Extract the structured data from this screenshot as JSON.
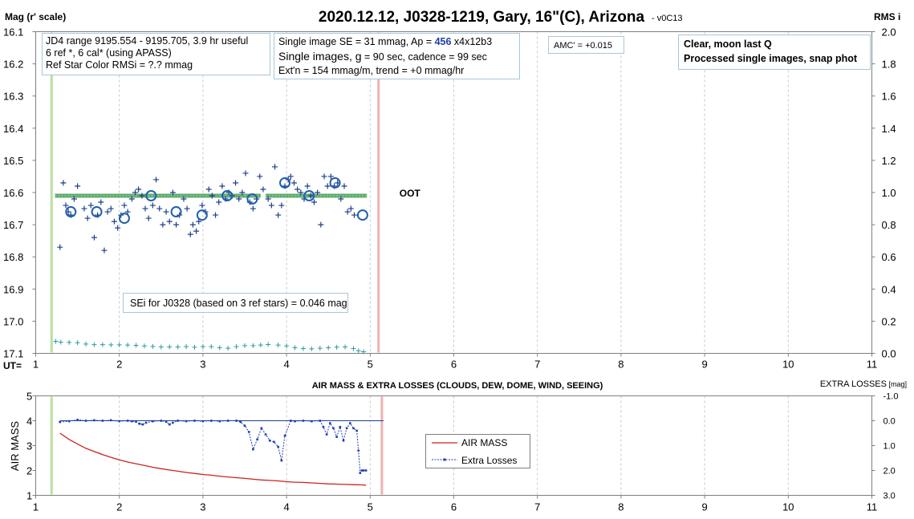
{
  "chart_data": [
    {
      "type": "scatter",
      "title": "2020.12.12, J0328-1219, Gary, 16\"(C), Arizona",
      "subtitle": "- v0C13",
      "ylabel_left": "Mag (r' scale)",
      "ylabel_right": "RMS i",
      "xlabel": "UT=",
      "xlim": [
        1,
        11
      ],
      "ylim_left": [
        16.1,
        17.1
      ],
      "ylim_right": [
        0.0,
        2.0
      ],
      "y_left_inverted": true,
      "x_ticks": [
        "1",
        "2",
        "3",
        "4",
        "5",
        "6",
        "7",
        "8",
        "9",
        "10",
        "11"
      ],
      "y_left_ticks": [
        "16.1",
        "16.2",
        "16.3",
        "16.4",
        "16.5",
        "16.6",
        "16.7",
        "16.8",
        "16.9",
        "17.0",
        "17.1"
      ],
      "y_right_ticks": [
        "2.0",
        "1.8",
        "1.6",
        "1.4",
        "1.2",
        "1.0",
        "0.8",
        "0.6",
        "0.4",
        "0.2",
        "0.0"
      ],
      "grid_x": true,
      "vertical_lines": [
        {
          "x": 1.19,
          "color": "#b8e0a0"
        },
        {
          "x": 5.1,
          "color": "#f2b0b0"
        }
      ],
      "annotation_oot": "OOT",
      "annotation_oot_x": 5.35,
      "annotation_oot_y": 16.6,
      "info_boxes": {
        "left": [
          "JD4 range 9195.554 - 9195.705, 3.9 hr useful",
          " 6 ref *, 6 cal* (using APASS)",
          "Ref Star Color RMSi = ?.? mmag"
        ],
        "mid_line1_a": "Single image SE = 31 mmag, Ap = ",
        "mid_line1_ap": "456",
        "mid_line1_b": " x4x12b3",
        "mid_line2_a": "Single images, ",
        "mid_line2_g": "g",
        "mid_line2_b": " = 90 sec, cadence = 99 sec",
        "mid_line3": "Ext'n = 154 mmag/m, trend = +0 mmag/hr",
        "amc": "AMC' = +0.015",
        "right": [
          "Clear, moon last Q",
          "Processed single images, snap phot"
        ],
        "sei": "SEi for J0328 (based on 3 ref stars) = 0.046 mag"
      },
      "series": [
        {
          "kind": "single-images",
          "marker": "plus",
          "color": "#1f3f8a",
          "points": [
            [
              1.29,
              16.77
            ],
            [
              1.33,
              16.57
            ],
            [
              1.36,
              16.64
            ],
            [
              1.39,
              16.66
            ],
            [
              1.42,
              16.67
            ],
            [
              1.46,
              16.62
            ],
            [
              1.5,
              16.58
            ],
            [
              1.58,
              16.65
            ],
            [
              1.62,
              16.68
            ],
            [
              1.66,
              16.64
            ],
            [
              1.7,
              16.74
            ],
            [
              1.74,
              16.67
            ],
            [
              1.78,
              16.63
            ],
            [
              1.82,
              16.78
            ],
            [
              1.86,
              16.66
            ],
            [
              1.9,
              16.65
            ],
            [
              1.94,
              16.69
            ],
            [
              1.98,
              16.71
            ],
            [
              2.02,
              16.67
            ],
            [
              2.06,
              16.64
            ],
            [
              2.1,
              16.66
            ],
            [
              2.15,
              16.62
            ],
            [
              2.19,
              16.6
            ],
            [
              2.23,
              16.59
            ],
            [
              2.27,
              16.61
            ],
            [
              2.31,
              16.65
            ],
            [
              2.35,
              16.68
            ],
            [
              2.4,
              16.64
            ],
            [
              2.44,
              16.56
            ],
            [
              2.48,
              16.65
            ],
            [
              2.52,
              16.7
            ],
            [
              2.56,
              16.66
            ],
            [
              2.6,
              16.69
            ],
            [
              2.64,
              16.6
            ],
            [
              2.68,
              16.7
            ],
            [
              2.72,
              16.67
            ],
            [
              2.77,
              16.62
            ],
            [
              2.81,
              16.65
            ],
            [
              2.85,
              16.73
            ],
            [
              2.88,
              16.7
            ],
            [
              2.92,
              16.72
            ],
            [
              2.95,
              16.69
            ],
            [
              2.99,
              16.64
            ],
            [
              3.03,
              16.66
            ],
            [
              3.07,
              16.59
            ],
            [
              3.11,
              16.61
            ],
            [
              3.15,
              16.67
            ],
            [
              3.19,
              16.63
            ],
            [
              3.23,
              16.58
            ],
            [
              3.27,
              16.62
            ],
            [
              3.31,
              16.6
            ],
            [
              3.35,
              16.61
            ],
            [
              3.39,
              16.57
            ],
            [
              3.43,
              16.62
            ],
            [
              3.47,
              16.6
            ],
            [
              3.51,
              16.54
            ],
            [
              3.56,
              16.63
            ],
            [
              3.6,
              16.65
            ],
            [
              3.64,
              16.62
            ],
            [
              3.68,
              16.55
            ],
            [
              3.72,
              16.59
            ],
            [
              3.78,
              16.62
            ],
            [
              3.82,
              16.64
            ],
            [
              3.86,
              16.52
            ],
            [
              3.9,
              16.67
            ],
            [
              3.94,
              16.64
            ],
            [
              3.98,
              16.58
            ],
            [
              4.02,
              16.56
            ],
            [
              4.05,
              16.55
            ],
            [
              4.09,
              16.57
            ],
            [
              4.13,
              16.59
            ],
            [
              4.17,
              16.6
            ],
            [
              4.21,
              16.62
            ],
            [
              4.25,
              16.58
            ],
            [
              4.29,
              16.61
            ],
            [
              4.33,
              16.63
            ],
            [
              4.37,
              16.6
            ],
            [
              4.41,
              16.7
            ],
            [
              4.45,
              16.55
            ],
            [
              4.49,
              16.58
            ],
            [
              4.53,
              16.55
            ],
            [
              4.57,
              16.58
            ],
            [
              4.61,
              16.57
            ],
            [
              4.65,
              16.62
            ],
            [
              4.69,
              16.58
            ],
            [
              4.73,
              16.66
            ],
            [
              4.77,
              16.65
            ],
            [
              4.81,
              16.67
            ]
          ]
        },
        {
          "kind": "binned-averages",
          "marker": "circle",
          "color": "#1f5fb0",
          "points": [
            [
              1.42,
              16.66
            ],
            [
              1.73,
              16.66
            ],
            [
              2.06,
              16.68
            ],
            [
              2.38,
              16.61
            ],
            [
              2.68,
              16.66
            ],
            [
              2.99,
              16.67
            ],
            [
              3.29,
              16.61
            ],
            [
              3.59,
              16.62
            ],
            [
              3.98,
              16.57
            ],
            [
              4.27,
              16.61
            ],
            [
              4.58,
              16.57
            ],
            [
              4.91,
              16.67
            ]
          ]
        },
        {
          "kind": "model-fit",
          "marker": "band",
          "color": "#2e8b40",
          "x_ranges": [
            [
              1.23,
              3.69
            ],
            [
              3.75,
              4.96
            ]
          ],
          "y": 16.61
        },
        {
          "kind": "rms",
          "marker": "plus-trace",
          "color": "#2e9aa0",
          "axis": "right",
          "points": [
            [
              1.24,
              0.075
            ],
            [
              1.3,
              0.07
            ],
            [
              1.4,
              0.068
            ],
            [
              1.5,
              0.066
            ],
            [
              1.6,
              0.058
            ],
            [
              1.7,
              0.054
            ],
            [
              1.8,
              0.054
            ],
            [
              1.9,
              0.053
            ],
            [
              2.0,
              0.053
            ],
            [
              2.1,
              0.052
            ],
            [
              2.2,
              0.05
            ],
            [
              2.3,
              0.046
            ],
            [
              2.4,
              0.043
            ],
            [
              2.5,
              0.04
            ],
            [
              2.6,
              0.04
            ],
            [
              2.7,
              0.04
            ],
            [
              2.8,
              0.042
            ],
            [
              2.9,
              0.038
            ],
            [
              3.0,
              0.042
            ],
            [
              3.1,
              0.042
            ],
            [
              3.2,
              0.035
            ],
            [
              3.3,
              0.032
            ],
            [
              3.4,
              0.042
            ],
            [
              3.5,
              0.048
            ],
            [
              3.6,
              0.048
            ],
            [
              3.69,
              0.052
            ],
            [
              3.78,
              0.055
            ],
            [
              3.9,
              0.052
            ],
            [
              4.0,
              0.046
            ],
            [
              4.1,
              0.035
            ],
            [
              4.2,
              0.03
            ],
            [
              4.3,
              0.028
            ],
            [
              4.4,
              0.032
            ],
            [
              4.5,
              0.035
            ],
            [
              4.6,
              0.038
            ],
            [
              4.7,
              0.04
            ],
            [
              4.8,
              0.03
            ],
            [
              4.86,
              0.016
            ],
            [
              4.92,
              0.01
            ]
          ]
        }
      ]
    },
    {
      "type": "line",
      "title": "AIR MASS & EXTRA LOSSES (CLOUDS, DEW, DOME, WIND, SEEING)",
      "ylabel_left": "AIR MASS",
      "ylabel_right_a": "EXTRA LOSSES",
      "ylabel_right_b": " [mag]",
      "xlim": [
        1,
        11
      ],
      "ylim_left": [
        1,
        5
      ],
      "ylim_right": [
        -1.0,
        3.0
      ],
      "y_right_inverted": true,
      "x_ticks": [
        "1",
        "2",
        "3",
        "4",
        "5",
        "6",
        "7",
        "8",
        "9",
        "10",
        "11"
      ],
      "y_left_ticks": [
        "5",
        "4",
        "3",
        "2",
        "1"
      ],
      "y_right_ticks": [
        "-1.0",
        "0.0",
        "1.0",
        "2.0",
        "3.0"
      ],
      "grid_x": true,
      "vertical_lines": [
        {
          "x": 1.19,
          "color": "#b8e0a0"
        },
        {
          "x": 5.14,
          "color": "#f2b0b0"
        }
      ],
      "legend": {
        "position": "center",
        "entries": [
          "AIR MASS",
          "Extra Losses"
        ]
      },
      "reference_line": {
        "y_right": 0.0,
        "x_range": [
          1.29,
          5.16
        ],
        "color": "#1f3f8a"
      },
      "series": [
        {
          "name": "AIR MASS",
          "color": "#cc2222",
          "axis": "left",
          "x": [
            1.29,
            1.4,
            1.5,
            1.6,
            1.7,
            1.8,
            1.9,
            2.0,
            2.1,
            2.2,
            2.3,
            2.4,
            2.5,
            2.6,
            2.7,
            2.8,
            2.9,
            3.0,
            3.1,
            3.2,
            3.3,
            3.4,
            3.5,
            3.6,
            3.7,
            3.8,
            3.9,
            4.0,
            4.1,
            4.2,
            4.3,
            4.4,
            4.5,
            4.6,
            4.7,
            4.8,
            4.9,
            4.95
          ],
          "values": [
            3.5,
            3.25,
            3.06,
            2.89,
            2.76,
            2.64,
            2.53,
            2.43,
            2.34,
            2.27,
            2.2,
            2.13,
            2.07,
            2.02,
            1.97,
            1.92,
            1.88,
            1.84,
            1.81,
            1.77,
            1.74,
            1.71,
            1.68,
            1.65,
            1.62,
            1.6,
            1.58,
            1.55,
            1.53,
            1.52,
            1.5,
            1.48,
            1.46,
            1.45,
            1.44,
            1.43,
            1.42,
            1.41
          ]
        },
        {
          "name": "Extra Losses",
          "color": "#1f3fb0",
          "axis": "right",
          "x": [
            1.29,
            1.4,
            1.5,
            1.6,
            1.7,
            1.8,
            1.9,
            2.0,
            2.1,
            2.15,
            2.2,
            2.24,
            2.28,
            2.32,
            2.4,
            2.5,
            2.56,
            2.6,
            2.64,
            2.7,
            2.8,
            2.9,
            3.0,
            3.1,
            3.2,
            3.3,
            3.4,
            3.45,
            3.5,
            3.55,
            3.6,
            3.65,
            3.7,
            3.75,
            3.8,
            3.85,
            3.9,
            3.94,
            3.98,
            4.05,
            4.1,
            4.2,
            4.3,
            4.4,
            4.44,
            4.48,
            4.52,
            4.56,
            4.6,
            4.64,
            4.68,
            4.72,
            4.76,
            4.8,
            4.84,
            4.86,
            4.88,
            4.9,
            4.92,
            4.95
          ],
          "values": [
            0.05,
            0.02,
            -0.04,
            0.0,
            -0.02,
            0.0,
            -0.02,
            0.02,
            0.0,
            0.02,
            0.04,
            0.12,
            0.15,
            0.08,
            0.02,
            0.0,
            0.04,
            0.15,
            0.08,
            0.0,
            0.02,
            0.0,
            0.02,
            0.0,
            0.02,
            0.0,
            0.0,
            0.05,
            0.2,
            0.45,
            1.15,
            0.75,
            0.3,
            0.55,
            0.8,
            0.85,
            1.05,
            1.6,
            0.6,
            0.0,
            0.02,
            0.0,
            0.02,
            0.0,
            0.25,
            0.55,
            0.1,
            0.3,
            0.65,
            0.25,
            0.8,
            0.3,
            0.1,
            0.3,
            0.4,
            1.2,
            2.1,
            2.0,
            2.0,
            2.0
          ]
        }
      ]
    }
  ]
}
